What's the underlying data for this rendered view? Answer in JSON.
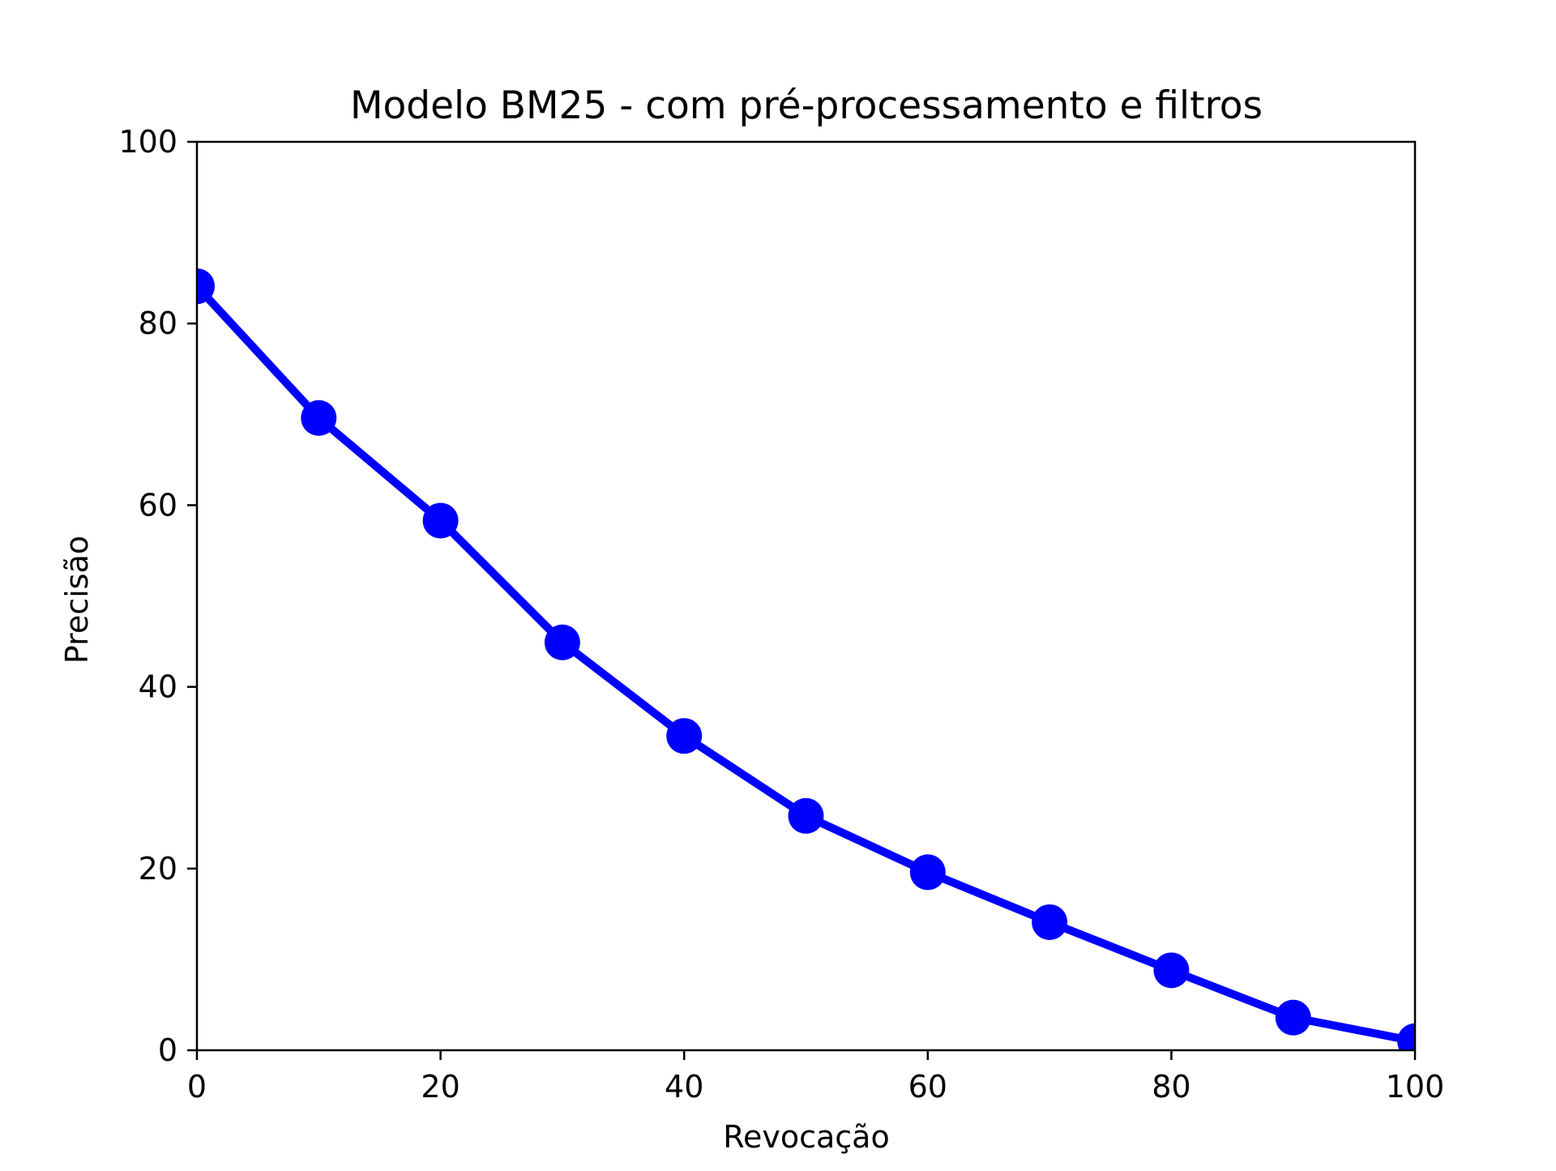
{
  "chart_data": {
    "type": "line",
    "title": "Modelo BM25 - com pré-processamento e filtros",
    "xlabel": "Revocação",
    "ylabel": "Precisão",
    "xlim": [
      0,
      100
    ],
    "ylim": [
      0,
      100
    ],
    "xticks": [
      0,
      20,
      40,
      60,
      80,
      100
    ],
    "yticks": [
      0,
      20,
      40,
      60,
      80,
      100
    ],
    "grid": false,
    "series": [
      {
        "color": "#0000ff",
        "marker": "circle",
        "x": [
          0,
          10,
          20,
          30,
          40,
          50,
          60,
          70,
          80,
          90,
          100
        ],
        "y": [
          84.1,
          69.6,
          58.3,
          44.9,
          34.6,
          25.8,
          19.6,
          14.1,
          8.8,
          3.6,
          1.0
        ]
      }
    ]
  }
}
